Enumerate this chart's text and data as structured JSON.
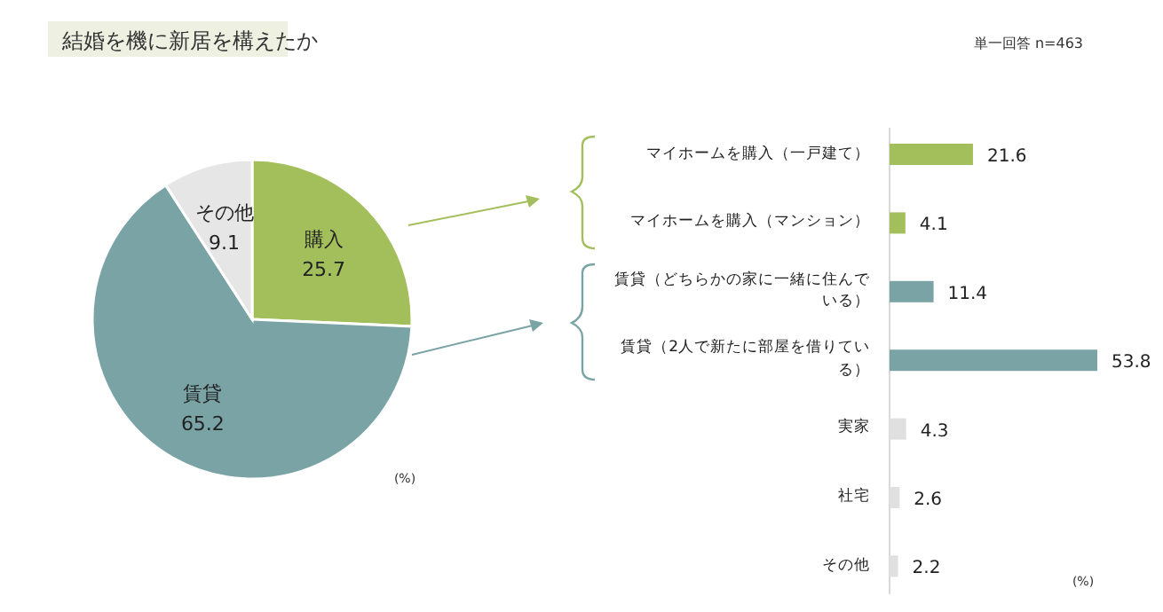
{
  "chart_data": [
    {
      "type": "pie",
      "title": "結婚を機に新居を構えたか",
      "categories": [
        "購入",
        "賃貸",
        "その他"
      ],
      "values": [
        25.7,
        65.2,
        9.1
      ],
      "colors": [
        "#a3bf5c",
        "#7aa3a5",
        "#e6e6e6"
      ],
      "data_labels": true,
      "annotations": [
        "(%)"
      ]
    },
    {
      "type": "bar",
      "orientation": "horizontal",
      "subtitle": "単一回答 n=463",
      "categories": [
        "マイホームを購入（一戸建て）",
        "マイホームを購入（マンション）",
        "賃貸（どちらかの家に一緒に住んでいる）",
        "賃貸（2人で新たに部屋を借りている）",
        "実家",
        "社宅",
        "その他"
      ],
      "values": [
        21.6,
        4.1,
        11.4,
        53.8,
        4.3,
        2.6,
        2.2
      ],
      "colors": [
        "#a3bf5c",
        "#a3bf5c",
        "#7aa3a5",
        "#7aa3a5",
        "#e0e0e0",
        "#e0e0e0",
        "#e0e0e0"
      ],
      "data_labels": true,
      "annotations": [
        "(%)"
      ]
    }
  ]
}
